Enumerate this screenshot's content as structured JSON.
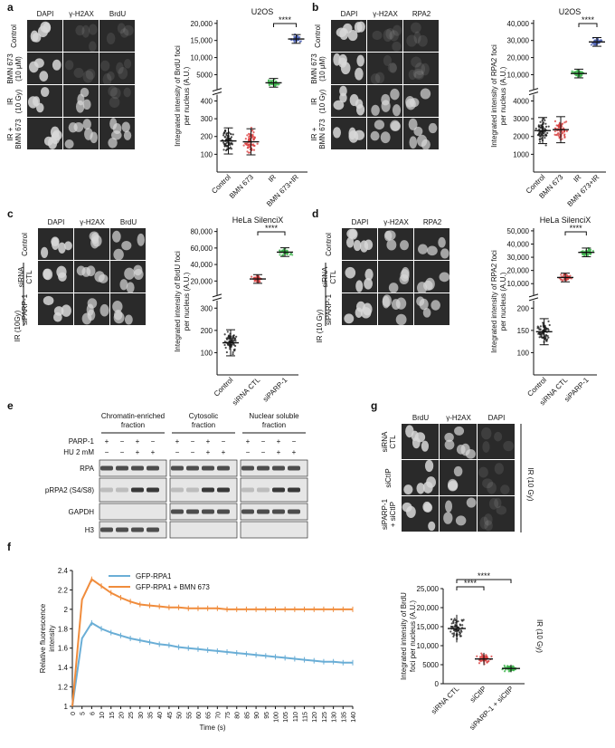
{
  "panels": {
    "a": {
      "letter": "a",
      "cols": [
        "DAPI",
        "γ-H2AX",
        "BrdU"
      ],
      "rows": [
        "Control",
        "BMN 673|(10 μM)",
        "IR|(10 Gy)",
        "IR +|BMN 673"
      ]
    },
    "b": {
      "letter": "b",
      "cols": [
        "DAPI",
        "γ-H2AX",
        "RPA2"
      ],
      "rows": [
        "Control",
        "BMN 673|(10 μM)",
        "IR|(10 Gy)",
        "IR +|BMN 673"
      ]
    },
    "c": {
      "letter": "c",
      "cols": [
        "DAPI",
        "γ-H2AX",
        "BrdU"
      ],
      "rows": [
        "Control",
        "siRNA|CTL",
        "siPARP-1"
      ],
      "side": "IR (10Gy)"
    },
    "d": {
      "letter": "d",
      "cols": [
        "DAPI",
        "γ-H2AX",
        "RPA2"
      ],
      "rows": [
        "Control",
        "siRNA|CTL",
        "siPARP-1"
      ],
      "side": "IR (10 Gy)"
    },
    "e": {
      "letter": "e",
      "fractions": [
        "Chromatin-enriched|fraction",
        "Cytosolic|fraction",
        "Nuclear soluble|fraction"
      ],
      "row_labels": [
        "PARP-1",
        "HU 2 mM"
      ],
      "parp": [
        "+",
        "−",
        "+",
        "−"
      ],
      "hu": [
        "−",
        "−",
        "+",
        "+"
      ],
      "bands": [
        "RPA",
        "pRPA2 (S4/S8)",
        "GAPDH",
        "H3"
      ]
    },
    "g": {
      "letter": "g",
      "cols": [
        "BrdU",
        "γ-H2AX",
        "DAPI"
      ],
      "rows": [
        "siRNA|CTL",
        "siCtIP",
        "siPARP-1|+ siCtIP"
      ],
      "side": "IR (10 Gy)"
    }
  },
  "chart_data": [
    {
      "id": "a",
      "type": "scatter",
      "title": "U2OS",
      "ylabel": "Integrated intensity of BrdU foci|per nucleus (A.U.)",
      "categories": [
        "Control",
        "BMN 673",
        "IR",
        "BMN 673+IR"
      ],
      "means": [
        180,
        175,
        4000,
        15800
      ],
      "colors": [
        "#222222",
        "#d84040",
        "#3cb44b",
        "#4a5fb0"
      ],
      "upper_ticks": [
        "5000",
        "10,000",
        "15,000",
        "20,000"
      ],
      "lower_ticks": [
        "100",
        "200",
        "300",
        "400"
      ],
      "significance": "****"
    },
    {
      "id": "b",
      "type": "scatter",
      "title": "U2OS",
      "ylabel": "Integrated intensity of RPA2 foci|per nucleus (A.U.)",
      "categories": [
        "Control",
        "BMN 673",
        "IR",
        "BMN 673+IR"
      ],
      "means": [
        2400,
        2450,
        13000,
        30000
      ],
      "colors": [
        "#222222",
        "#d84040",
        "#3cb44b",
        "#4a5fb0"
      ],
      "upper_ticks": [
        "10,000",
        "20,000",
        "30,000",
        "40,000"
      ],
      "lower_ticks": [
        "1000",
        "2000",
        "3000",
        "4000"
      ],
      "significance": "****"
    },
    {
      "id": "c",
      "type": "scatter",
      "title": "HeLa SilenciX",
      "ylabel": "Integrated intensity of BrdU foci|per nucleus (A.U.)",
      "categories": [
        "Control",
        "siRNA CTL",
        "siPARP-1"
      ],
      "means": [
        145,
        27000,
        57000
      ],
      "colors": [
        "#222222",
        "#d84040",
        "#3cb44b"
      ],
      "upper_ticks": [
        "20,000",
        "40,000",
        "60,000",
        "80,000"
      ],
      "lower_ticks": [
        "100",
        "200",
        "300"
      ],
      "significance": "****"
    },
    {
      "id": "d",
      "type": "scatter",
      "title": "HeLa SilenciX",
      "ylabel": "Integrated intensity of RPA2 foci|per nucleus (A.U.)",
      "categories": [
        "Control",
        "siRNA CTL",
        "siPARP-1"
      ],
      "means": [
        130,
        17000,
        35000
      ],
      "colors": [
        "#222222",
        "#d84040",
        "#3cb44b"
      ],
      "upper_ticks": [
        "10,000",
        "20,000",
        "30,000",
        "40,000",
        "50,000"
      ],
      "lower_ticks": [
        "100",
        "150",
        "200"
      ],
      "significance": "****"
    },
    {
      "id": "f",
      "type": "line",
      "xlabel": "Time (s)",
      "ylabel": "Relative fluorescence|intensity",
      "yticks": [
        "1",
        "1.2",
        "1.4",
        "1.6",
        "1.8",
        "2",
        "2.2",
        "2.4"
      ],
      "xticks": [
        "0",
        "5",
        "6",
        "10",
        "15",
        "20",
        "25",
        "30",
        "35",
        "40",
        "45",
        "50",
        "55",
        "60",
        "65",
        "70",
        "75",
        "80",
        "85",
        "90",
        "95",
        "100",
        "105",
        "110",
        "115",
        "120",
        "125",
        "130",
        "135",
        "140"
      ],
      "series": [
        {
          "name": "GFP-RPA1",
          "color": "#6aaed6",
          "x": [
            0,
            5,
            6,
            10,
            15,
            20,
            25,
            30,
            35,
            40,
            45,
            50,
            55,
            60,
            65,
            70,
            75,
            80,
            85,
            90,
            95,
            100,
            105,
            110,
            115,
            120,
            125,
            130,
            135,
            140
          ],
          "y": [
            1,
            1.7,
            1.86,
            1.8,
            1.76,
            1.73,
            1.7,
            1.68,
            1.66,
            1.64,
            1.63,
            1.61,
            1.6,
            1.59,
            1.58,
            1.57,
            1.56,
            1.55,
            1.54,
            1.53,
            1.52,
            1.51,
            1.5,
            1.49,
            1.48,
            1.47,
            1.46,
            1.46,
            1.45,
            1.45
          ]
        },
        {
          "name": "GFP-RPA1 + BMN 673",
          "color": "#f08c3c",
          "x": [
            0,
            5,
            6,
            10,
            15,
            20,
            25,
            30,
            35,
            40,
            45,
            50,
            55,
            60,
            65,
            70,
            75,
            80,
            85,
            90,
            95,
            100,
            105,
            110,
            115,
            120,
            125,
            130,
            135,
            140
          ],
          "y": [
            1,
            2.1,
            2.31,
            2.24,
            2.17,
            2.12,
            2.08,
            2.05,
            2.04,
            2.03,
            2.02,
            2.02,
            2.01,
            2.01,
            2.01,
            2.01,
            2.0,
            2.0,
            2.0,
            2.0,
            2.0,
            2.0,
            2.0,
            2.0,
            2.0,
            2.0,
            2.0,
            2.0,
            2.0,
            2.0
          ]
        }
      ]
    },
    {
      "id": "g",
      "type": "scatter",
      "ylabel": "Integrated intensity of BrdU|foci per nucleus (A.U.)",
      "side": "IR (10 Gy)",
      "categories": [
        "siRNA CTL",
        "siCtIP",
        "siPARP-1 + siCtIP"
      ],
      "means": [
        14500,
        6500,
        4000
      ],
      "colors": [
        "#222222",
        "#d84040",
        "#3cb44b"
      ],
      "yticks": [
        "0",
        "5000",
        "10,000",
        "15,000",
        "20,000",
        "25,000"
      ],
      "significance": [
        "****",
        "****"
      ]
    }
  ]
}
